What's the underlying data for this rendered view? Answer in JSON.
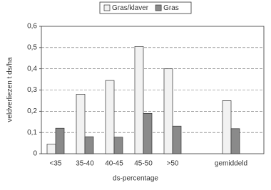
{
  "chart_data": {
    "type": "bar",
    "y_label": "veldverliezen t ds/ha",
    "x_label": "ds-percentage",
    "categories": [
      "<35",
      "35-40",
      "40-45",
      "45-50",
      ">50",
      null,
      "gemiddeld"
    ],
    "series": [
      {
        "name": "Gras/klaver",
        "color": "#f2f2f2",
        "values": [
          0.045,
          0.28,
          0.345,
          0.505,
          0.4,
          null,
          0.25
        ]
      },
      {
        "name": "Gras",
        "color": "#8a8a8a",
        "values": [
          0.12,
          0.08,
          0.078,
          0.19,
          0.13,
          null,
          0.118
        ]
      }
    ],
    "ylim": [
      0,
      0.6
    ],
    "yticks": [
      0,
      {
        "value": 0.1,
        "label": "0,1"
      },
      {
        "value": 0.2,
        "label": "0,2"
      },
      {
        "value": 0.3,
        "label": "0,3"
      },
      {
        "value": 0.4,
        "label": "0,4"
      },
      {
        "value": 0.5,
        "label": "0,5"
      },
      {
        "value": 0.6,
        "label": "0,6"
      }
    ],
    "grid": true,
    "legend": "top"
  }
}
